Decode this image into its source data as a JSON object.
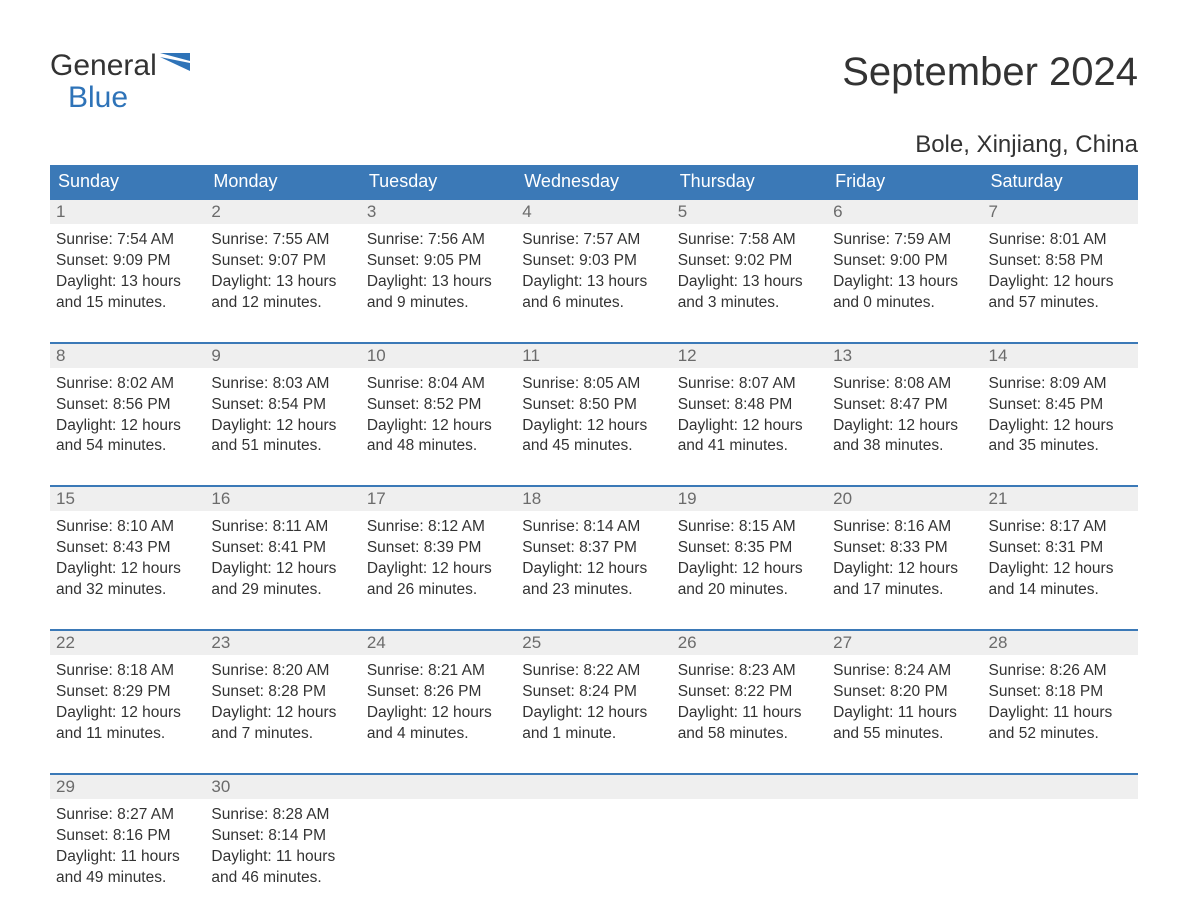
{
  "logo": {
    "line1": "General",
    "line2": "Blue"
  },
  "title": "September 2024",
  "location": "Bole, Xinjiang, China",
  "colors": {
    "header_bg": "#3b79b7",
    "header_text": "#ffffff",
    "daynum_bg": "#efefef",
    "daynum_text": "#6b6b6b",
    "border": "#3b79b7",
    "logo_blue": "#2e73b8",
    "body_text": "#333333",
    "page_bg": "#ffffff"
  },
  "weekdays": [
    "Sunday",
    "Monday",
    "Tuesday",
    "Wednesday",
    "Thursday",
    "Friday",
    "Saturday"
  ],
  "weeks": [
    [
      {
        "day": "1",
        "sunrise": "Sunrise: 7:54 AM",
        "sunset": "Sunset: 9:09 PM",
        "d1": "Daylight: 13 hours",
        "d2": "and 15 minutes."
      },
      {
        "day": "2",
        "sunrise": "Sunrise: 7:55 AM",
        "sunset": "Sunset: 9:07 PM",
        "d1": "Daylight: 13 hours",
        "d2": "and 12 minutes."
      },
      {
        "day": "3",
        "sunrise": "Sunrise: 7:56 AM",
        "sunset": "Sunset: 9:05 PM",
        "d1": "Daylight: 13 hours",
        "d2": "and 9 minutes."
      },
      {
        "day": "4",
        "sunrise": "Sunrise: 7:57 AM",
        "sunset": "Sunset: 9:03 PM",
        "d1": "Daylight: 13 hours",
        "d2": "and 6 minutes."
      },
      {
        "day": "5",
        "sunrise": "Sunrise: 7:58 AM",
        "sunset": "Sunset: 9:02 PM",
        "d1": "Daylight: 13 hours",
        "d2": "and 3 minutes."
      },
      {
        "day": "6",
        "sunrise": "Sunrise: 7:59 AM",
        "sunset": "Sunset: 9:00 PM",
        "d1": "Daylight: 13 hours",
        "d2": "and 0 minutes."
      },
      {
        "day": "7",
        "sunrise": "Sunrise: 8:01 AM",
        "sunset": "Sunset: 8:58 PM",
        "d1": "Daylight: 12 hours",
        "d2": "and 57 minutes."
      }
    ],
    [
      {
        "day": "8",
        "sunrise": "Sunrise: 8:02 AM",
        "sunset": "Sunset: 8:56 PM",
        "d1": "Daylight: 12 hours",
        "d2": "and 54 minutes."
      },
      {
        "day": "9",
        "sunrise": "Sunrise: 8:03 AM",
        "sunset": "Sunset: 8:54 PM",
        "d1": "Daylight: 12 hours",
        "d2": "and 51 minutes."
      },
      {
        "day": "10",
        "sunrise": "Sunrise: 8:04 AM",
        "sunset": "Sunset: 8:52 PM",
        "d1": "Daylight: 12 hours",
        "d2": "and 48 minutes."
      },
      {
        "day": "11",
        "sunrise": "Sunrise: 8:05 AM",
        "sunset": "Sunset: 8:50 PM",
        "d1": "Daylight: 12 hours",
        "d2": "and 45 minutes."
      },
      {
        "day": "12",
        "sunrise": "Sunrise: 8:07 AM",
        "sunset": "Sunset: 8:48 PM",
        "d1": "Daylight: 12 hours",
        "d2": "and 41 minutes."
      },
      {
        "day": "13",
        "sunrise": "Sunrise: 8:08 AM",
        "sunset": "Sunset: 8:47 PM",
        "d1": "Daylight: 12 hours",
        "d2": "and 38 minutes."
      },
      {
        "day": "14",
        "sunrise": "Sunrise: 8:09 AM",
        "sunset": "Sunset: 8:45 PM",
        "d1": "Daylight: 12 hours",
        "d2": "and 35 minutes."
      }
    ],
    [
      {
        "day": "15",
        "sunrise": "Sunrise: 8:10 AM",
        "sunset": "Sunset: 8:43 PM",
        "d1": "Daylight: 12 hours",
        "d2": "and 32 minutes."
      },
      {
        "day": "16",
        "sunrise": "Sunrise: 8:11 AM",
        "sunset": "Sunset: 8:41 PM",
        "d1": "Daylight: 12 hours",
        "d2": "and 29 minutes."
      },
      {
        "day": "17",
        "sunrise": "Sunrise: 8:12 AM",
        "sunset": "Sunset: 8:39 PM",
        "d1": "Daylight: 12 hours",
        "d2": "and 26 minutes."
      },
      {
        "day": "18",
        "sunrise": "Sunrise: 8:14 AM",
        "sunset": "Sunset: 8:37 PM",
        "d1": "Daylight: 12 hours",
        "d2": "and 23 minutes."
      },
      {
        "day": "19",
        "sunrise": "Sunrise: 8:15 AM",
        "sunset": "Sunset: 8:35 PM",
        "d1": "Daylight: 12 hours",
        "d2": "and 20 minutes."
      },
      {
        "day": "20",
        "sunrise": "Sunrise: 8:16 AM",
        "sunset": "Sunset: 8:33 PM",
        "d1": "Daylight: 12 hours",
        "d2": "and 17 minutes."
      },
      {
        "day": "21",
        "sunrise": "Sunrise: 8:17 AM",
        "sunset": "Sunset: 8:31 PM",
        "d1": "Daylight: 12 hours",
        "d2": "and 14 minutes."
      }
    ],
    [
      {
        "day": "22",
        "sunrise": "Sunrise: 8:18 AM",
        "sunset": "Sunset: 8:29 PM",
        "d1": "Daylight: 12 hours",
        "d2": "and 11 minutes."
      },
      {
        "day": "23",
        "sunrise": "Sunrise: 8:20 AM",
        "sunset": "Sunset: 8:28 PM",
        "d1": "Daylight: 12 hours",
        "d2": "and 7 minutes."
      },
      {
        "day": "24",
        "sunrise": "Sunrise: 8:21 AM",
        "sunset": "Sunset: 8:26 PM",
        "d1": "Daylight: 12 hours",
        "d2": "and 4 minutes."
      },
      {
        "day": "25",
        "sunrise": "Sunrise: 8:22 AM",
        "sunset": "Sunset: 8:24 PM",
        "d1": "Daylight: 12 hours",
        "d2": "and 1 minute."
      },
      {
        "day": "26",
        "sunrise": "Sunrise: 8:23 AM",
        "sunset": "Sunset: 8:22 PM",
        "d1": "Daylight: 11 hours",
        "d2": "and 58 minutes."
      },
      {
        "day": "27",
        "sunrise": "Sunrise: 8:24 AM",
        "sunset": "Sunset: 8:20 PM",
        "d1": "Daylight: 11 hours",
        "d2": "and 55 minutes."
      },
      {
        "day": "28",
        "sunrise": "Sunrise: 8:26 AM",
        "sunset": "Sunset: 8:18 PM",
        "d1": "Daylight: 11 hours",
        "d2": "and 52 minutes."
      }
    ],
    [
      {
        "day": "29",
        "sunrise": "Sunrise: 8:27 AM",
        "sunset": "Sunset: 8:16 PM",
        "d1": "Daylight: 11 hours",
        "d2": "and 49 minutes."
      },
      {
        "day": "30",
        "sunrise": "Sunrise: 8:28 AM",
        "sunset": "Sunset: 8:14 PM",
        "d1": "Daylight: 11 hours",
        "d2": "and 46 minutes."
      },
      null,
      null,
      null,
      null,
      null
    ]
  ]
}
